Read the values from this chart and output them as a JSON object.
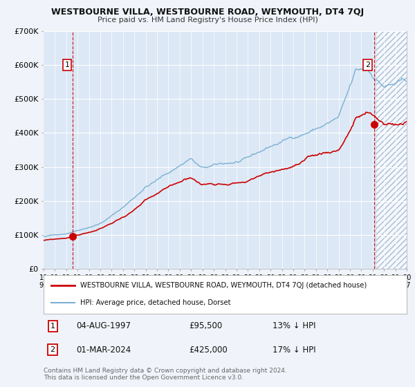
{
  "title": "WESTBOURNE VILLA, WESTBOURNE ROAD, WEYMOUTH, DT4 7QJ",
  "subtitle": "Price paid vs. HM Land Registry's House Price Index (HPI)",
  "background_color": "#f0f4fa",
  "plot_bg_color": "#dce8f5",
  "grid_color": "#ffffff",
  "red_line_color": "#cc0000",
  "blue_line_color": "#7ab0d4",
  "sale1_date_num": 1997.585,
  "sale1_price": 95500,
  "sale2_date_num": 2024.165,
  "sale2_price": 425000,
  "xmin": 1995.0,
  "xmax": 2027.0,
  "ymin": 0,
  "ymax": 700000,
  "yticks": [
    0,
    100000,
    200000,
    300000,
    400000,
    500000,
    600000,
    700000
  ],
  "ytick_labels": [
    "£0",
    "£100K",
    "£200K",
    "£300K",
    "£400K",
    "£500K",
    "£600K",
    "£700K"
  ],
  "legend_line1": "WESTBOURNE VILLA, WESTBOURNE ROAD, WEYMOUTH, DT4 7QJ (detached house)",
  "legend_line2": "HPI: Average price, detached house, Dorset",
  "note1_date": "04-AUG-1997",
  "note1_price": "£95,500",
  "note1_hpi": "13% ↓ HPI",
  "note2_date": "01-MAR-2024",
  "note2_price": "£425,000",
  "note2_hpi": "17% ↓ HPI",
  "footer": "Contains HM Land Registry data © Crown copyright and database right 2024.\nThis data is licensed under the Open Government Licence v3.0."
}
